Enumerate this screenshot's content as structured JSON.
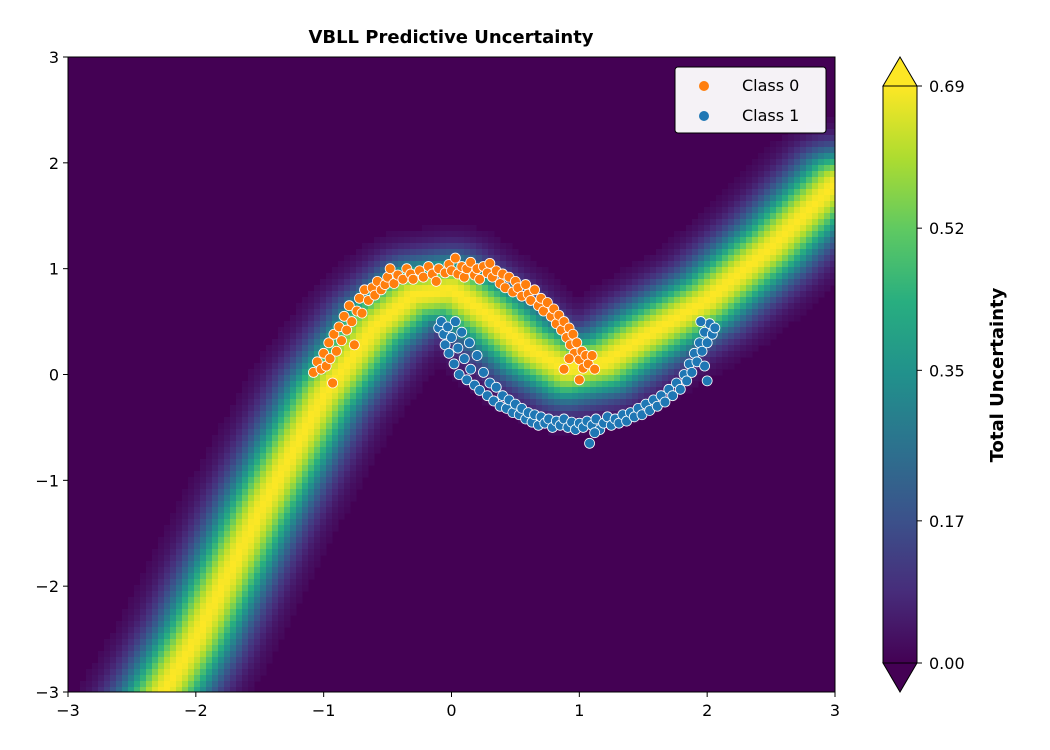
{
  "chart_data": {
    "type": "heatmap",
    "title": "VBLL Predictive Uncertainty",
    "xlim": [
      -3,
      3
    ],
    "ylim": [
      -3,
      3
    ],
    "xticks": [
      -3,
      -2,
      -1,
      0,
      1,
      2,
      3
    ],
    "yticks": [
      -3,
      -2,
      -1,
      0,
      1,
      2,
      3
    ],
    "xtick_labels": [
      "−3",
      "−2",
      "−1",
      "0",
      "1",
      "2",
      "3"
    ],
    "ytick_labels": [
      "−3",
      "−2",
      "−1",
      "0",
      "1",
      "2",
      "3"
    ],
    "heatmap": {
      "quantity": "Total Uncertainty",
      "vmin": 0.0,
      "vmax": 0.69,
      "colormap": "viridis",
      "boundary_curve": {
        "x": [
          -3.0,
          -2.5,
          -2.0,
          -1.5,
          -1.0,
          -0.6,
          -0.3,
          0.0,
          0.3,
          0.6,
          0.9,
          1.2,
          1.5,
          2.0,
          2.5,
          3.0
        ],
        "y": [
          -4.0,
          -3.5,
          -2.5,
          -1.3,
          -0.2,
          0.45,
          0.75,
          0.8,
          0.55,
          0.25,
          0.05,
          0.12,
          0.35,
          0.7,
          1.2,
          1.8
        ]
      },
      "peak_width": 0.22
    },
    "colorbar": {
      "label": "Total Uncertainty",
      "ticks": [
        0.0,
        0.17,
        0.35,
        0.52,
        0.69
      ],
      "tick_labels": [
        "0.00",
        "0.17",
        "0.35",
        "0.52",
        "0.69"
      ],
      "extend": "both"
    },
    "legend": {
      "placement": "top-right",
      "entries": [
        "Class 0",
        "Class 1"
      ]
    },
    "series": [
      {
        "name": "Class 0",
        "color": "#ff7f0e",
        "points": [
          [
            -1.08,
            0.02
          ],
          [
            -1.05,
            0.12
          ],
          [
            -1.02,
            0.05
          ],
          [
            -1.0,
            0.2
          ],
          [
            -0.98,
            0.08
          ],
          [
            -0.96,
            0.3
          ],
          [
            -0.95,
            0.15
          ],
          [
            -0.93,
            -0.08
          ],
          [
            -0.92,
            0.38
          ],
          [
            -0.9,
            0.22
          ],
          [
            -0.88,
            0.45
          ],
          [
            -0.86,
            0.32
          ],
          [
            -0.84,
            0.55
          ],
          [
            -0.82,
            0.42
          ],
          [
            -0.8,
            0.65
          ],
          [
            -0.78,
            0.5
          ],
          [
            -0.76,
            0.28
          ],
          [
            -0.74,
            0.6
          ],
          [
            -0.72,
            0.72
          ],
          [
            -0.7,
            0.58
          ],
          [
            -0.68,
            0.8
          ],
          [
            -0.65,
            0.7
          ],
          [
            -0.62,
            0.82
          ],
          [
            -0.6,
            0.75
          ],
          [
            -0.58,
            0.88
          ],
          [
            -0.55,
            0.8
          ],
          [
            -0.52,
            0.85
          ],
          [
            -0.5,
            0.92
          ],
          [
            -0.48,
            1.0
          ],
          [
            -0.45,
            0.86
          ],
          [
            -0.42,
            0.94
          ],
          [
            -0.38,
            0.9
          ],
          [
            -0.35,
            1.0
          ],
          [
            -0.32,
            0.95
          ],
          [
            -0.3,
            0.9
          ],
          [
            -0.25,
            0.98
          ],
          [
            -0.22,
            0.92
          ],
          [
            -0.18,
            1.02
          ],
          [
            -0.15,
            0.95
          ],
          [
            -0.12,
            0.88
          ],
          [
            -0.1,
            1.0
          ],
          [
            -0.05,
            0.96
          ],
          [
            -0.02,
            1.04
          ],
          [
            0.0,
            0.98
          ],
          [
            0.03,
            1.1
          ],
          [
            0.05,
            0.95
          ],
          [
            0.08,
            1.02
          ],
          [
            0.1,
            0.92
          ],
          [
            0.12,
            1.0
          ],
          [
            0.15,
            1.06
          ],
          [
            0.18,
            0.94
          ],
          [
            0.2,
            1.0
          ],
          [
            0.22,
            0.9
          ],
          [
            0.25,
            1.02
          ],
          [
            0.28,
            0.96
          ],
          [
            0.3,
            1.05
          ],
          [
            0.32,
            0.92
          ],
          [
            0.35,
            0.98
          ],
          [
            0.38,
            0.86
          ],
          [
            0.4,
            0.95
          ],
          [
            0.42,
            0.82
          ],
          [
            0.45,
            0.92
          ],
          [
            0.48,
            0.78
          ],
          [
            0.5,
            0.88
          ],
          [
            0.52,
            0.82
          ],
          [
            0.55,
            0.74
          ],
          [
            0.58,
            0.85
          ],
          [
            0.6,
            0.76
          ],
          [
            0.62,
            0.7
          ],
          [
            0.65,
            0.8
          ],
          [
            0.68,
            0.65
          ],
          [
            0.7,
            0.72
          ],
          [
            0.72,
            0.6
          ],
          [
            0.75,
            0.68
          ],
          [
            0.78,
            0.55
          ],
          [
            0.8,
            0.62
          ],
          [
            0.82,
            0.48
          ],
          [
            0.84,
            0.56
          ],
          [
            0.86,
            0.42
          ],
          [
            0.88,
            0.5
          ],
          [
            0.9,
            0.35
          ],
          [
            0.92,
            0.44
          ],
          [
            0.93,
            0.28
          ],
          [
            0.95,
            0.38
          ],
          [
            0.96,
            0.2
          ],
          [
            0.98,
            0.3
          ],
          [
            1.0,
            0.14
          ],
          [
            1.02,
            0.22
          ],
          [
            1.03,
            0.06
          ],
          [
            1.05,
            0.18
          ],
          [
            1.07,
            0.1
          ],
          [
            1.1,
            0.18
          ],
          [
            1.12,
            0.05
          ],
          [
            0.88,
            0.05
          ],
          [
            1.0,
            -0.05
          ],
          [
            0.92,
            0.15
          ]
        ]
      },
      {
        "name": "Class 1",
        "color": "#1f77b4",
        "points": [
          [
            -0.1,
            0.44
          ],
          [
            -0.08,
            0.5
          ],
          [
            -0.06,
            0.38
          ],
          [
            -0.05,
            0.28
          ],
          [
            -0.03,
            0.45
          ],
          [
            -0.02,
            0.2
          ],
          [
            0.0,
            0.35
          ],
          [
            0.02,
            0.1
          ],
          [
            0.03,
            0.5
          ],
          [
            0.05,
            0.25
          ],
          [
            0.06,
            0.0
          ],
          [
            0.08,
            0.4
          ],
          [
            0.1,
            0.15
          ],
          [
            0.12,
            -0.05
          ],
          [
            0.14,
            0.3
          ],
          [
            0.15,
            0.05
          ],
          [
            0.18,
            -0.1
          ],
          [
            0.2,
            0.18
          ],
          [
            0.22,
            -0.15
          ],
          [
            0.25,
            0.02
          ],
          [
            0.28,
            -0.2
          ],
          [
            0.3,
            -0.08
          ],
          [
            0.33,
            -0.25
          ],
          [
            0.35,
            -0.12
          ],
          [
            0.38,
            -0.3
          ],
          [
            0.4,
            -0.2
          ],
          [
            0.43,
            -0.32
          ],
          [
            0.45,
            -0.24
          ],
          [
            0.48,
            -0.36
          ],
          [
            0.5,
            -0.28
          ],
          [
            0.53,
            -0.38
          ],
          [
            0.55,
            -0.32
          ],
          [
            0.58,
            -0.42
          ],
          [
            0.6,
            -0.36
          ],
          [
            0.63,
            -0.45
          ],
          [
            0.65,
            -0.38
          ],
          [
            0.68,
            -0.48
          ],
          [
            0.7,
            -0.4
          ],
          [
            0.73,
            -0.46
          ],
          [
            0.76,
            -0.42
          ],
          [
            0.79,
            -0.5
          ],
          [
            0.82,
            -0.44
          ],
          [
            0.85,
            -0.48
          ],
          [
            0.88,
            -0.42
          ],
          [
            0.91,
            -0.5
          ],
          [
            0.94,
            -0.45
          ],
          [
            0.97,
            -0.52
          ],
          [
            1.0,
            -0.46
          ],
          [
            1.03,
            -0.5
          ],
          [
            1.06,
            -0.44
          ],
          [
            1.08,
            -0.65
          ],
          [
            1.1,
            -0.48
          ],
          [
            1.13,
            -0.42
          ],
          [
            1.16,
            -0.52
          ],
          [
            1.19,
            -0.46
          ],
          [
            1.22,
            -0.4
          ],
          [
            1.25,
            -0.48
          ],
          [
            1.28,
            -0.42
          ],
          [
            1.31,
            -0.46
          ],
          [
            1.34,
            -0.38
          ],
          [
            1.37,
            -0.44
          ],
          [
            1.4,
            -0.36
          ],
          [
            1.43,
            -0.4
          ],
          [
            1.46,
            -0.32
          ],
          [
            1.49,
            -0.38
          ],
          [
            1.52,
            -0.28
          ],
          [
            1.55,
            -0.34
          ],
          [
            1.58,
            -0.24
          ],
          [
            1.61,
            -0.3
          ],
          [
            1.64,
            -0.2
          ],
          [
            1.67,
            -0.26
          ],
          [
            1.7,
            -0.14
          ],
          [
            1.73,
            -0.2
          ],
          [
            1.76,
            -0.08
          ],
          [
            1.79,
            -0.14
          ],
          [
            1.82,
            0.0
          ],
          [
            1.84,
            -0.06
          ],
          [
            1.86,
            0.1
          ],
          [
            1.88,
            0.02
          ],
          [
            1.9,
            0.2
          ],
          [
            1.92,
            0.12
          ],
          [
            1.94,
            0.3
          ],
          [
            1.96,
            0.22
          ],
          [
            1.98,
            0.4
          ],
          [
            2.0,
            0.3
          ],
          [
            2.02,
            0.48
          ],
          [
            2.04,
            0.38
          ],
          [
            2.06,
            0.44
          ],
          [
            1.98,
            0.08
          ],
          [
            2.0,
            -0.06
          ],
          [
            1.95,
            0.5
          ],
          [
            1.12,
            -0.55
          ]
        ]
      }
    ]
  }
}
